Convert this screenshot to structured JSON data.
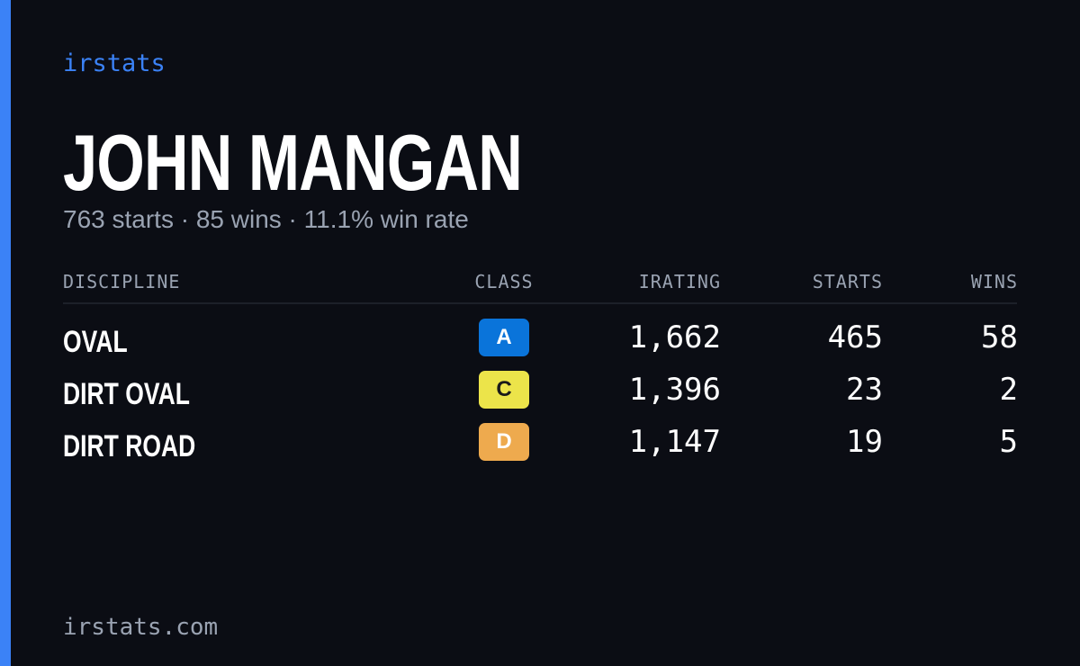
{
  "brand": "irstats",
  "driver": {
    "name": "JOHN MANGAN",
    "summary": "763 starts · 85 wins · 11.1% win rate"
  },
  "table": {
    "columns": [
      "DISCIPLINE",
      "CLASS",
      "IRATING",
      "STARTS",
      "WINS"
    ],
    "rows": [
      {
        "discipline": "OVAL",
        "class": "A",
        "class_color": "#0a74da",
        "class_text_color": "#ffffff",
        "irating": "1,662",
        "starts": "465",
        "wins": "58"
      },
      {
        "discipline": "DIRT OVAL",
        "class": "C",
        "class_color": "#ece44a",
        "class_text_color": "#1a1a1a",
        "irating": "1,396",
        "starts": "23",
        "wins": "2"
      },
      {
        "discipline": "DIRT ROAD",
        "class": "D",
        "class_color": "#eeaa4e",
        "class_text_color": "#ffffff",
        "irating": "1,147",
        "starts": "19",
        "wins": "5"
      }
    ]
  },
  "footer": "irstats.com"
}
